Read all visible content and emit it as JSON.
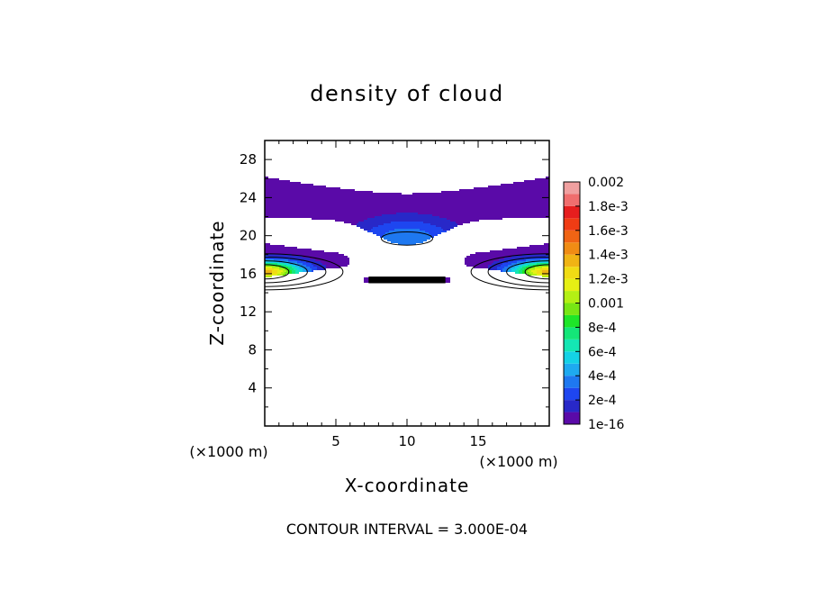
{
  "chart_data": {
    "type": "heatmap",
    "title": "density of cloud",
    "xlabel": "X-coordinate",
    "ylabel": "Z-coordinate",
    "x_unit": "(×1000 m)",
    "y_unit": "(×1000 m)",
    "xlim": [
      0,
      20
    ],
    "ylim": [
      0,
      30
    ],
    "x_ticks": [
      5,
      10,
      15
    ],
    "y_ticks": [
      4,
      8,
      12,
      16,
      20,
      24,
      28
    ],
    "grid": false,
    "footer": "CONTOUR INTERVAL = 3.000E-04",
    "colorbar": {
      "placement": "right",
      "levels": [
        1e-16,
        0.0001,
        0.0002,
        0.0003,
        0.0004,
        0.0005,
        0.0006,
        0.0007,
        0.0008,
        0.0009,
        0.001,
        0.0011,
        0.0012,
        0.0013,
        0.0014,
        0.0015,
        0.0016,
        0.0017,
        0.0018,
        0.0019,
        0.002
      ],
      "colors": [
        "#5a0aa8",
        "#2828c8",
        "#1e46f0",
        "#1e78f0",
        "#1eaaf0",
        "#14d2e6",
        "#14e6b4",
        "#14e678",
        "#1ee628",
        "#78e614",
        "#b4f014",
        "#e6f014",
        "#f0dc14",
        "#f0b414",
        "#f08c14",
        "#f06414",
        "#f03c14",
        "#e61e1e",
        "#f06e6e",
        "#f0a0a0"
      ],
      "tick_values": [
        1e-16,
        0.0002,
        0.0004,
        0.0006,
        0.0008,
        0.001,
        0.0012,
        0.0014,
        0.0016,
        0.0018,
        0.002
      ],
      "tick_labels": [
        "1e-16",
        "2e-4",
        "4e-4",
        "6e-4",
        "8e-4",
        "0.001",
        "1.2e-3",
        "1.4e-3",
        "1.6e-3",
        "1.8e-3",
        "0.002"
      ]
    },
    "cloud_regions": [
      {
        "name": "upper arc",
        "x_range": [
          0,
          20
        ],
        "z_range": [
          21.8,
          26.2
        ],
        "peak_value": 3e-05,
        "peak_location": [
          10,
          22.0
        ]
      },
      {
        "name": "center cell",
        "x_range": [
          4.2,
          15.8
        ],
        "z_range": [
          18.6,
          24.4
        ],
        "peak_value": 0.00036,
        "peak_location": [
          10,
          19.6
        ]
      },
      {
        "name": "left lobe",
        "x_range": [
          0,
          6.0
        ],
        "z_range": [
          15.6,
          19.2
        ],
        "peak_value": 0.0013,
        "peak_location": [
          0,
          16.2
        ]
      },
      {
        "name": "right lobe",
        "x_range": [
          14.0,
          20
        ],
        "z_range": [
          15.6,
          19.2
        ],
        "peak_value": 0.0013,
        "peak_location": [
          20,
          16.2
        ]
      },
      {
        "name": "center lower band",
        "x_range": [
          7.0,
          13.0
        ],
        "z_range": [
          15.0,
          15.7
        ],
        "peak_value": 4e-05,
        "peak_location": [
          10,
          15.3
        ]
      }
    ]
  }
}
